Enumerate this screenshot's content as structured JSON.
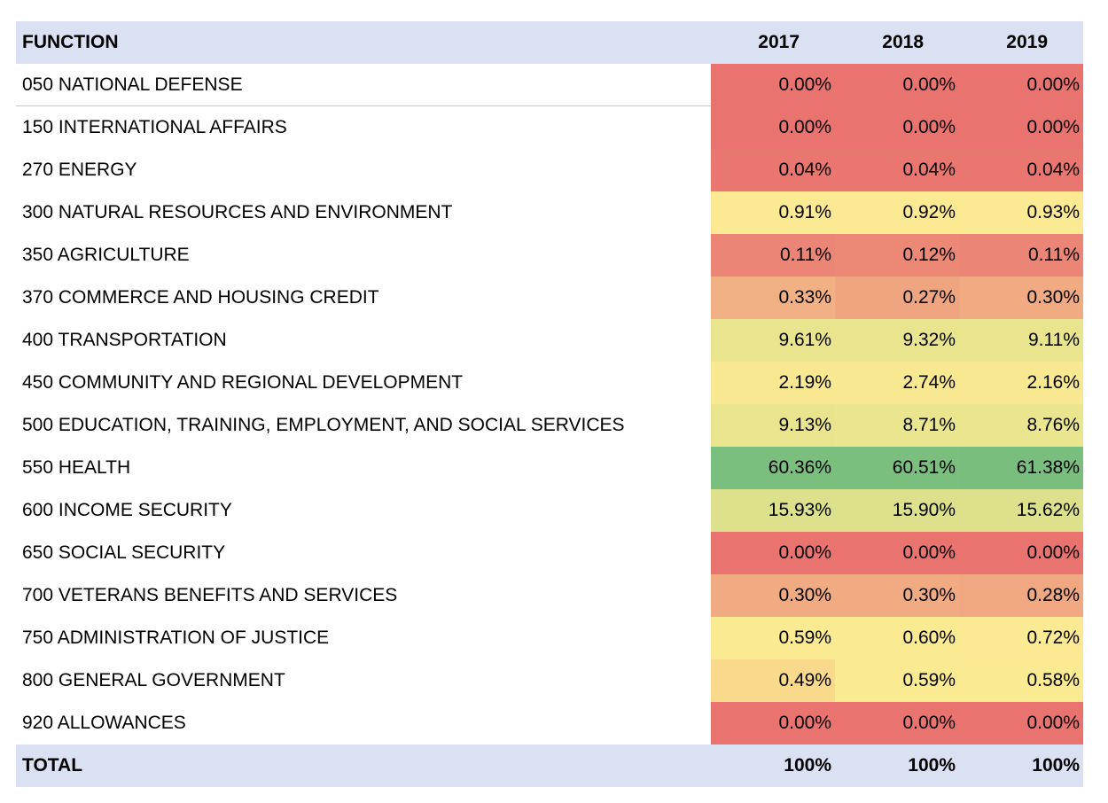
{
  "table": {
    "headers": {
      "function": "FUNCTION",
      "years": [
        "2017",
        "2018",
        "2019"
      ]
    },
    "rows": [
      {
        "label": "050 NATIONAL DEFENSE",
        "values": [
          "0.00%",
          "0.00%",
          "0.00%"
        ],
        "colors": [
          "#e8736f",
          "#e8736f",
          "#e8736f"
        ]
      },
      {
        "label": "150 INTERNATIONAL AFFAIRS",
        "values": [
          "0.00%",
          "0.00%",
          "0.00%"
        ],
        "colors": [
          "#e8736f",
          "#e8736f",
          "#e8736f"
        ]
      },
      {
        "label": "270 ENERGY",
        "values": [
          "0.04%",
          "0.04%",
          "0.04%"
        ],
        "colors": [
          "#e9766f",
          "#e9766f",
          "#e9766f"
        ]
      },
      {
        "label": "300 NATURAL RESOURCES AND ENVIRONMENT",
        "values": [
          "0.91%",
          "0.92%",
          "0.93%"
        ],
        "colors": [
          "#fbe993",
          "#fbe993",
          "#fbe993"
        ]
      },
      {
        "label": "350 AGRICULTURE",
        "values": [
          "0.11%",
          "0.12%",
          "0.11%"
        ],
        "colors": [
          "#eb8575",
          "#eb8876",
          "#eb8575"
        ]
      },
      {
        "label": "370 COMMERCE AND HOUSING CREDIT",
        "values": [
          "0.33%",
          "0.27%",
          "0.30%"
        ],
        "colors": [
          "#f1b184",
          "#efa680",
          "#f0ab82"
        ]
      },
      {
        "label": "400 TRANSPORTATION",
        "values": [
          "9.61%",
          "9.32%",
          "9.11%"
        ],
        "colors": [
          "#e9e48e",
          "#e9e48e",
          "#e9e48e"
        ]
      },
      {
        "label": "450 COMMUNITY AND REGIONAL DEVELOPMENT",
        "values": [
          "2.19%",
          "2.74%",
          "2.16%"
        ],
        "colors": [
          "#f8e891",
          "#f7e891",
          "#f8e891"
        ]
      },
      {
        "label": "500 EDUCATION, TRAINING, EMPLOYMENT, AND SOCIAL SERVICES",
        "values": [
          "9.13%",
          "8.71%",
          "8.76%"
        ],
        "colors": [
          "#e9e48e",
          "#eae58f",
          "#eae58f"
        ]
      },
      {
        "label": "550 HEALTH",
        "values": [
          "60.36%",
          "60.51%",
          "61.38%"
        ],
        "colors": [
          "#7bbf7f",
          "#7bbf7f",
          "#79be7e"
        ]
      },
      {
        "label": "600 INCOME SECURITY",
        "values": [
          "15.93%",
          "15.90%",
          "15.62%"
        ],
        "colors": [
          "#dde18c",
          "#dde18c",
          "#dde18c"
        ]
      },
      {
        "label": "650 SOCIAL SECURITY",
        "values": [
          "0.00%",
          "0.00%",
          "0.00%"
        ],
        "colors": [
          "#e8736f",
          "#e8736f",
          "#e8736f"
        ]
      },
      {
        "label": "700 VETERANS BENEFITS AND SERVICES",
        "values": [
          "0.30%",
          "0.30%",
          "0.28%"
        ],
        "colors": [
          "#f0ab82",
          "#f0ab82",
          "#efa881"
        ]
      },
      {
        "label": "750 ADMINISTRATION OF JUSTICE",
        "values": [
          "0.59%",
          "0.60%",
          "0.72%"
        ],
        "colors": [
          "#faea92",
          "#faea92",
          "#fbea93"
        ]
      },
      {
        "label": "800 GENERAL GOVERNMENT",
        "values": [
          "0.49%",
          "0.59%",
          "0.58%"
        ],
        "colors": [
          "#f9d98c",
          "#faea92",
          "#faea92"
        ]
      },
      {
        "label": "920 ALLOWANCES",
        "values": [
          "0.00%",
          "0.00%",
          "0.00%"
        ],
        "colors": [
          "#e8736f",
          "#e8736f",
          "#e8736f"
        ]
      }
    ],
    "total": {
      "label": "TOTAL",
      "values": [
        "100%",
        "100%",
        "100%"
      ]
    }
  }
}
